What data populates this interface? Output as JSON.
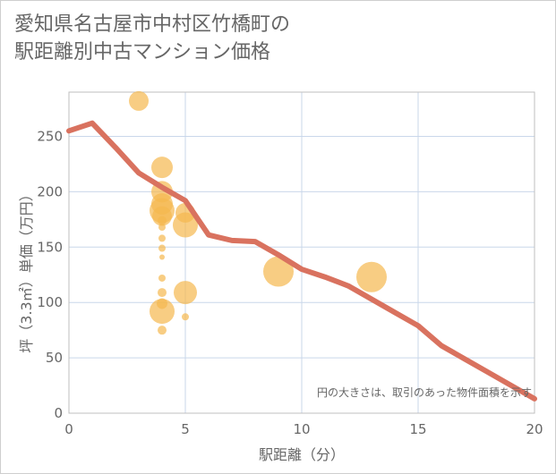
{
  "title": {
    "line1": "愛知県名古屋市中村区竹橋町の",
    "line2": "駅距離別中古マンション価格"
  },
  "colors": {
    "line": "#d9725f",
    "bubble": "#f5b84f",
    "grid": "#c9d7ea",
    "plot_border": "#bfbfbf",
    "text": "#666666"
  },
  "chart_data": {
    "type": "scatter",
    "xlabel": "駅距離（分）",
    "ylabel": "坪（3.3㎡）単価（万円）",
    "xlim": [
      0,
      20
    ],
    "ylim": [
      0,
      290
    ],
    "xticks": [
      0,
      5,
      10,
      15,
      20
    ],
    "yticks": [
      0,
      50,
      100,
      150,
      200,
      250
    ],
    "annotation": "円の大きさは、取引のあった物件面積を示す",
    "trend_line": {
      "x": [
        0,
        1,
        2,
        3,
        4,
        5,
        6,
        7,
        8,
        9,
        10,
        11,
        12,
        13,
        14,
        15,
        16,
        17,
        18,
        19,
        20
      ],
      "y": [
        255,
        262,
        240,
        217,
        204,
        192,
        161,
        156,
        155,
        143,
        130,
        123,
        115,
        103,
        91,
        79,
        61,
        49,
        37,
        25,
        13
      ]
    },
    "bubbles": [
      {
        "x": 3,
        "y": 282,
        "size": 11
      },
      {
        "x": 4,
        "y": 222,
        "size": 12
      },
      {
        "x": 4,
        "y": 200,
        "size": 12
      },
      {
        "x": 4,
        "y": 189,
        "size": 12
      },
      {
        "x": 4,
        "y": 183,
        "size": 14
      },
      {
        "x": 4,
        "y": 178,
        "size": 11
      },
      {
        "x": 4,
        "y": 174,
        "size": 5
      },
      {
        "x": 4,
        "y": 168,
        "size": 4
      },
      {
        "x": 4,
        "y": 158,
        "size": 4
      },
      {
        "x": 4,
        "y": 149,
        "size": 4
      },
      {
        "x": 4,
        "y": 141,
        "size": 3
      },
      {
        "x": 4,
        "y": 122,
        "size": 4
      },
      {
        "x": 4,
        "y": 109,
        "size": 5
      },
      {
        "x": 4,
        "y": 99,
        "size": 6
      },
      {
        "x": 4,
        "y": 92,
        "size": 14
      },
      {
        "x": 4,
        "y": 75,
        "size": 5
      },
      {
        "x": 5,
        "y": 181,
        "size": 11
      },
      {
        "x": 5,
        "y": 170,
        "size": 14
      },
      {
        "x": 5,
        "y": 109,
        "size": 13
      },
      {
        "x": 5,
        "y": 87,
        "size": 4
      },
      {
        "x": 9,
        "y": 128,
        "size": 17
      },
      {
        "x": 13,
        "y": 123,
        "size": 17
      }
    ]
  }
}
